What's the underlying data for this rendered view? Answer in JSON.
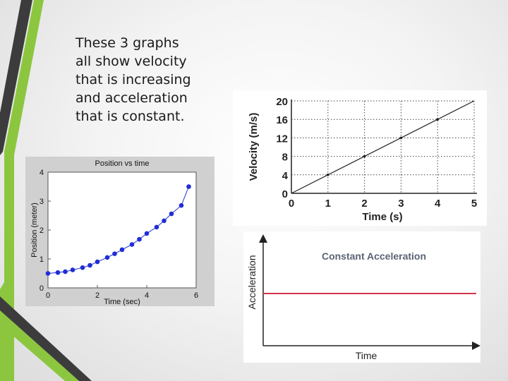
{
  "slide": {
    "caption_lines": [
      "These 3 graphs",
      "all show velocity",
      "that is increasing",
      "and acceleration",
      "that is constant."
    ]
  },
  "colors": {
    "accent_green": "#8cc63f",
    "accent_dark": "#3c3c3c",
    "marker_blue": "#1f2ed6",
    "accel_red": "#d0354a",
    "accel_title": "#5a6475"
  },
  "chart_data": [
    {
      "type": "line",
      "title": "Position vs time",
      "xlabel": "Time (sec)",
      "ylabel": "Position (meter)",
      "xlim": [
        0,
        6
      ],
      "ylim": [
        0,
        4
      ],
      "xticks": [
        "0",
        "2",
        "4",
        "6"
      ],
      "yticks": [
        "0",
        "1",
        "2",
        "3",
        "4"
      ],
      "markers": true,
      "x": [
        0,
        0.4,
        0.7,
        1.0,
        1.4,
        1.7,
        2.0,
        2.4,
        2.7,
        3.0,
        3.4,
        3.7,
        4.0,
        4.4,
        4.7,
        5.0,
        5.4,
        5.7
      ],
      "y": [
        0.5,
        0.53,
        0.56,
        0.62,
        0.7,
        0.78,
        0.9,
        1.05,
        1.18,
        1.32,
        1.5,
        1.68,
        1.88,
        2.1,
        2.32,
        2.56,
        2.85,
        3.5
      ]
    },
    {
      "type": "line",
      "title": "",
      "xlabel": "Time (s)",
      "ylabel": "Velocity (m/s)",
      "xlim": [
        0,
        5
      ],
      "ylim": [
        0,
        20
      ],
      "xticks": [
        "0",
        "1",
        "2",
        "3",
        "4",
        "5"
      ],
      "yticks": [
        "0",
        "4",
        "8",
        "12",
        "16",
        "20"
      ],
      "grid": "dotted",
      "x": [
        0,
        5
      ],
      "y": [
        0,
        20
      ],
      "points": [
        [
          1,
          4
        ],
        [
          2,
          8
        ],
        [
          3,
          12
        ],
        [
          4,
          16
        ]
      ]
    },
    {
      "type": "line",
      "title": "Constant Acceleration",
      "xlabel": "Time",
      "ylabel": "Acceleration",
      "constant_level": 0.5
    }
  ]
}
